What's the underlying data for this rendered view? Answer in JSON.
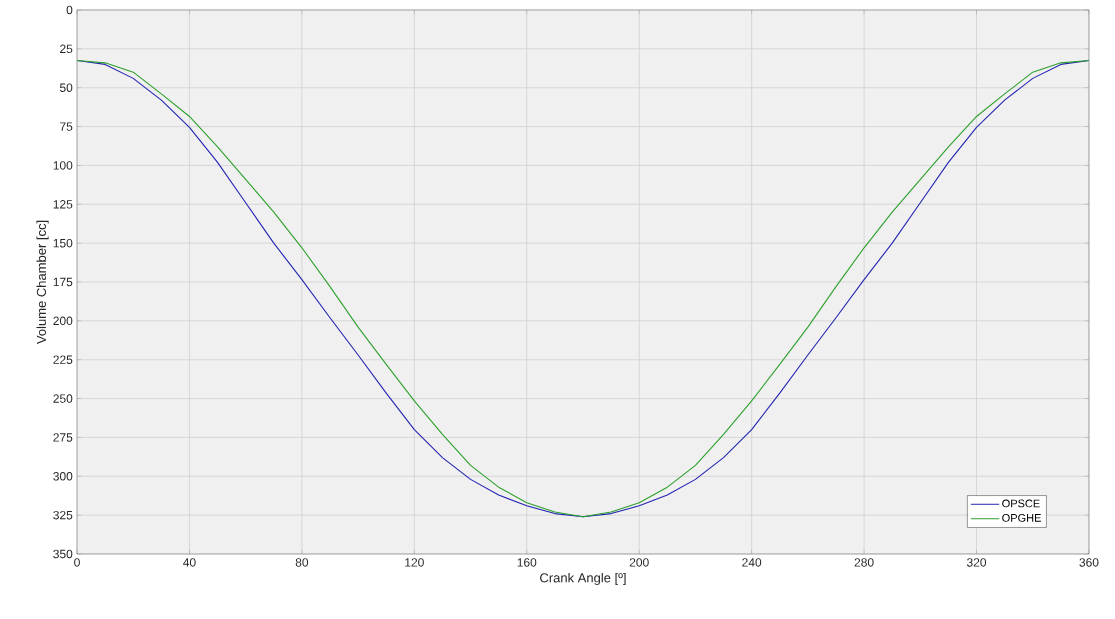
{
  "chart_data": {
    "type": "line",
    "xlabel": "Crank Angle [º]",
    "ylabel": "Volume Chamber [cc]",
    "x": [
      0,
      10,
      20,
      30,
      40,
      50,
      60,
      70,
      80,
      90,
      100,
      110,
      120,
      130,
      140,
      150,
      160,
      170,
      180,
      190,
      200,
      210,
      220,
      230,
      240,
      250,
      260,
      270,
      280,
      290,
      300,
      310,
      320,
      330,
      340,
      350,
      360
    ],
    "series": [
      {
        "name": "OPSCE",
        "color": "#2323b4",
        "values": [
          32.5,
          35,
          44,
          58,
          75.5,
          98,
          124,
          150,
          173.5,
          198,
          222,
          246.5,
          270,
          288,
          302,
          312,
          319,
          324,
          326,
          324,
          319,
          312,
          302,
          288,
          270,
          246.5,
          222,
          198,
          173.5,
          150,
          124,
          98,
          75.5,
          58,
          44,
          35,
          32.5
        ]
      },
      {
        "name": "OPGHE",
        "color": "#2ca02c",
        "values": [
          32.5,
          34,
          40,
          54,
          68.5,
          88,
          109,
          130,
          153,
          178,
          204,
          228,
          251.5,
          273,
          293,
          307,
          317,
          323,
          326,
          323,
          317,
          307,
          293,
          273,
          251.5,
          228,
          204,
          178,
          153,
          130,
          109,
          88,
          68.5,
          54,
          40,
          34,
          32.5
        ]
      }
    ],
    "xlim": [
      0,
      360
    ],
    "ylim": [
      350,
      0
    ],
    "xticks": [
      0,
      40,
      80,
      120,
      160,
      200,
      240,
      280,
      320,
      360
    ],
    "yticks": [
      0,
      25,
      50,
      75,
      100,
      125,
      150,
      175,
      200,
      225,
      250,
      275,
      300,
      325,
      350
    ],
    "grid": true,
    "legend": "bottom right",
    "marker": "none",
    "line_style": "solid"
  }
}
